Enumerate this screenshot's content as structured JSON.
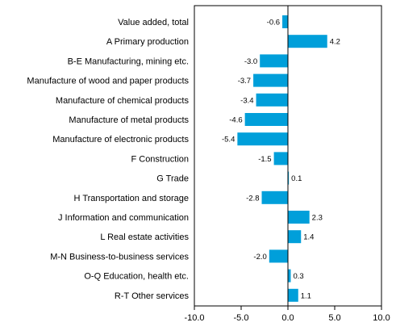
{
  "chart_data": {
    "type": "bar",
    "orientation": "horizontal",
    "categories": [
      "Value added, total",
      "A Primary production",
      "B-E Manufacturing, mining etc.",
      "Manufacture of wood and paper products",
      "Manufacture of chemical products",
      "Manufacture of metal products",
      "Manufacture of electronic products",
      "F Construction",
      "G Trade",
      "H Transportation and storage",
      "J Information and communication",
      "L Real estate activities",
      "M-N Business-to-business services",
      "O-Q Education, health etc.",
      "R-T Other services"
    ],
    "values": [
      -0.6,
      4.2,
      -3.0,
      -3.7,
      -3.4,
      -4.6,
      -5.4,
      -1.5,
      0.1,
      -2.8,
      2.3,
      1.4,
      -2.0,
      0.3,
      1.1
    ],
    "value_labels": [
      "-0.6",
      "4.2",
      "-3.0",
      "-3.7",
      "-3.4",
      "-4.6",
      "-5.4",
      "-1.5",
      "0.1",
      "-2.8",
      "2.3",
      "1.4",
      "-2.0",
      "0.3",
      "1.1"
    ],
    "xlim": [
      -10,
      10
    ],
    "xticks": [
      -10,
      -5,
      0,
      5,
      10
    ],
    "xtick_labels": [
      "-10.0",
      "-5.0",
      "0.0",
      "5.0",
      "10.0"
    ],
    "bar_color": "#009fda",
    "grid": false,
    "title": "",
    "xlabel": "",
    "ylabel": ""
  }
}
